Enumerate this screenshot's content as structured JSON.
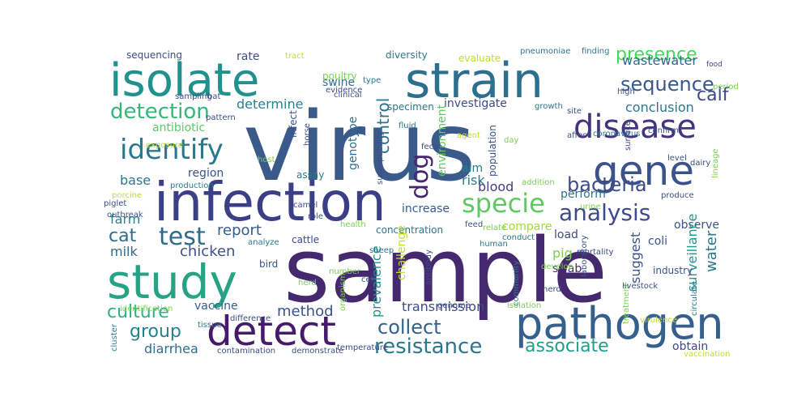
{
  "title": "",
  "words": [
    {
      "text": "virus",
      "color": "#3b5a8c"
    },
    {
      "text": "sample",
      "color": "#45296e"
    },
    {
      "text": "infection",
      "color": "#3a3f86"
    },
    {
      "text": "strain",
      "color": "#2c6f8e"
    },
    {
      "text": "isolate",
      "color": "#20918c"
    },
    {
      "text": "study",
      "color": "#26a284"
    },
    {
      "text": "pathogen",
      "color": "#355f8d"
    },
    {
      "text": "detect",
      "color": "#481a6c"
    },
    {
      "text": "disease",
      "color": "#46337e"
    },
    {
      "text": "gene",
      "color": "#3b528b"
    },
    {
      "text": "identify",
      "color": "#2a788e"
    },
    {
      "text": "detection",
      "color": "#35b779"
    },
    {
      "text": "specie",
      "color": "#5ec962"
    },
    {
      "text": "analysis",
      "color": "#3e4a89"
    },
    {
      "text": "test",
      "color": "#2f6b8e"
    },
    {
      "text": "sequence",
      "color": "#38588c"
    },
    {
      "text": "bacteria",
      "color": "#3e4c8a"
    },
    {
      "text": "resistance",
      "color": "#2a768e"
    },
    {
      "text": "associate",
      "color": "#1fa088"
    },
    {
      "text": "collect",
      "color": "#33628d"
    },
    {
      "text": "group",
      "color": "#26828e"
    },
    {
      "text": "culture",
      "color": "#2eb37c"
    },
    {
      "text": "method",
      "color": "#3a538b"
    },
    {
      "text": "dog",
      "color": "#482475"
    },
    {
      "text": "cat",
      "color": "#2f6c8e"
    },
    {
      "text": "presence",
      "color": "#3ddc5a"
    },
    {
      "text": "calf",
      "color": "#3e4989"
    },
    {
      "text": "control",
      "color": "#2c728e"
    },
    {
      "text": "determine",
      "color": "#26828e"
    },
    {
      "text": "report",
      "color": "#365c8d"
    },
    {
      "text": "chicken",
      "color": "#3b528b"
    },
    {
      "text": "milk",
      "color": "#31688e"
    },
    {
      "text": "farm",
      "color": "#25838e"
    },
    {
      "text": "base",
      "color": "#2a788e"
    },
    {
      "text": "antibiotic",
      "color": "#5ec962"
    },
    {
      "text": "diarrhea",
      "color": "#2d718e"
    },
    {
      "text": "vaccine",
      "color": "#355f8d"
    },
    {
      "text": "water",
      "color": "#2a788e"
    },
    {
      "text": "pig",
      "color": "#7ad151"
    },
    {
      "text": "suggest",
      "color": "#3b528b"
    },
    {
      "text": "transmission",
      "color": "#3e4a89"
    },
    {
      "text": "prevalence",
      "color": "#20918c"
    },
    {
      "text": "blood",
      "color": "#433e85"
    },
    {
      "text": "increase",
      "color": "#365c8d"
    },
    {
      "text": "perform",
      "color": "#2c728e"
    },
    {
      "text": "compare",
      "color": "#a0da39"
    },
    {
      "text": "coli",
      "color": "#3b528b"
    },
    {
      "text": "observe",
      "color": "#3b528b"
    },
    {
      "text": "obtain",
      "color": "#3e4a89"
    },
    {
      "text": "conclusion",
      "color": "#2a788e"
    },
    {
      "text": "investigate",
      "color": "#3e4a89"
    },
    {
      "text": "wastewater",
      "color": "#32658e"
    },
    {
      "text": "rate",
      "color": "#3e4c8a"
    },
    {
      "text": "swine",
      "color": "#2f6c8e"
    },
    {
      "text": "poultry",
      "color": "#7ad151"
    },
    {
      "text": "diversity",
      "color": "#2a788e"
    },
    {
      "text": "evaluate",
      "color": "#bddf26"
    },
    {
      "text": "sequencing",
      "color": "#3e4a89"
    },
    {
      "text": "region",
      "color": "#3b528b"
    },
    {
      "text": "concentration",
      "color": "#2a788e"
    },
    {
      "text": "cattle",
      "color": "#3e4a89"
    },
    {
      "text": "bird",
      "color": "#3b528b"
    },
    {
      "text": "swab",
      "color": "#482475"
    },
    {
      "text": "load",
      "color": "#3e4a89"
    },
    {
      "text": "risk",
      "color": "#2a788e"
    },
    {
      "text": "aim",
      "color": "#26828e"
    },
    {
      "text": "population",
      "color": "#3b528b"
    },
    {
      "text": "assay",
      "color": "#2a788e"
    },
    {
      "text": "genotype",
      "color": "#2f6c8e"
    },
    {
      "text": "challenge",
      "color": "#c2df23"
    },
    {
      "text": "surveillance",
      "color": "#1f988b"
    },
    {
      "text": "specimen",
      "color": "#2a788e"
    },
    {
      "text": "environment",
      "color": "#5ec962"
    },
    {
      "text": "infect",
      "color": "#3b528b"
    },
    {
      "text": "horse",
      "color": "#3e4a89"
    },
    {
      "text": "pneumoniae",
      "color": "#2a788e"
    },
    {
      "text": "finding",
      "color": "#2a788e"
    },
    {
      "text": "evidence",
      "color": "#3e4a89"
    },
    {
      "text": "growth",
      "color": "#2a788e"
    },
    {
      "text": "site",
      "color": "#3b528b"
    },
    {
      "text": "food",
      "color": "#3e4a89"
    },
    {
      "text": "tract",
      "color": "#bddf26"
    },
    {
      "text": "role",
      "color": "#3b528b"
    },
    {
      "text": "camel",
      "color": "#3e4a89"
    },
    {
      "text": "feed",
      "color": "#3b528b"
    },
    {
      "text": "relate",
      "color": "#7ad151"
    },
    {
      "text": "conduct",
      "color": "#2a788e"
    },
    {
      "text": "health",
      "color": "#7ad151"
    },
    {
      "text": "analyze",
      "color": "#2a788e"
    },
    {
      "text": "develop",
      "color": "#7ad151"
    },
    {
      "text": "nerd",
      "color": "#3e4a89"
    },
    {
      "text": "industry",
      "color": "#3b528b"
    },
    {
      "text": "circulate",
      "color": "#2a788e"
    },
    {
      "text": "treatment",
      "color": "#7ad151"
    },
    {
      "text": "virulence",
      "color": "#bddf26"
    },
    {
      "text": "vaccination",
      "color": "#bddf26"
    },
    {
      "text": "livestock",
      "color": "#3e4a89"
    },
    {
      "text": "laboratory",
      "color": "#3b528b"
    },
    {
      "text": "community",
      "color": "#2a788e"
    },
    {
      "text": "antibody",
      "color": "#3e4a89"
    },
    {
      "text": "organism",
      "color": "#7ad151"
    },
    {
      "text": "isolation",
      "color": "#7ad151"
    },
    {
      "text": "contamination",
      "color": "#3e4a89"
    },
    {
      "text": "demonstrate",
      "color": "#3b528b"
    },
    {
      "text": "temperature",
      "color": "#3e4a89"
    },
    {
      "text": "cluster",
      "color": "#2a788e"
    },
    {
      "text": "identification",
      "color": "#7ad151"
    },
    {
      "text": "difference",
      "color": "#3e4a89"
    },
    {
      "text": "tissue",
      "color": "#2a788e"
    },
    {
      "text": "outbreak",
      "color": "#3b528b"
    },
    {
      "text": "piglet",
      "color": "#3e4a89"
    },
    {
      "text": "porcine",
      "color": "#bddf26"
    },
    {
      "text": "production",
      "color": "#2a788e"
    },
    {
      "text": "host",
      "color": "#7ad151"
    },
    {
      "text": "susceptibility",
      "color": "#3e4a89"
    },
    {
      "text": "addition",
      "color": "#7ad151"
    },
    {
      "text": "affect",
      "color": "#3e4a89"
    },
    {
      "text": "coronavirus",
      "color": "#2a788e"
    },
    {
      "text": "confirm",
      "color": "#3b528b"
    },
    {
      "text": "lineage",
      "color": "#7ad151"
    },
    {
      "text": "surface",
      "color": "#3e4a89"
    },
    {
      "text": "high",
      "color": "#3b528b"
    },
    {
      "text": "urine",
      "color": "#7ad151"
    },
    {
      "text": "produce",
      "color": "#3e4a89"
    },
    {
      "text": "fluid",
      "color": "#2a788e"
    },
    {
      "text": "sampling",
      "color": "#3e4a89"
    },
    {
      "text": "bat",
      "color": "#3b528b"
    },
    {
      "text": "period",
      "color": "#7ad151"
    },
    {
      "text": "agent",
      "color": "#bddf26"
    },
    {
      "text": "type",
      "color": "#2a788e"
    },
    {
      "text": "fecal",
      "color": "#3e4a89"
    },
    {
      "text": "day",
      "color": "#7ad151"
    },
    {
      "text": "level",
      "color": "#3b528b"
    },
    {
      "text": "dairy",
      "color": "#3e4a89"
    },
    {
      "text": "sheep",
      "color": "#2a788e"
    },
    {
      "text": "genome",
      "color": "#3e4a89"
    },
    {
      "text": "number",
      "color": "#7ad151"
    },
    {
      "text": "cell",
      "color": "#3b528b"
    },
    {
      "text": "human",
      "color": "#2a788e"
    },
    {
      "text": "mortality",
      "color": "#3e4a89"
    },
    {
      "text": "herd",
      "color": "#7ad151"
    },
    {
      "text": "clinical",
      "color": "#3b528b"
    },
    {
      "text": "pattern",
      "color": "#3e4a89"
    },
    {
      "text": "exposure",
      "color": "#bddf26"
    }
  ]
}
